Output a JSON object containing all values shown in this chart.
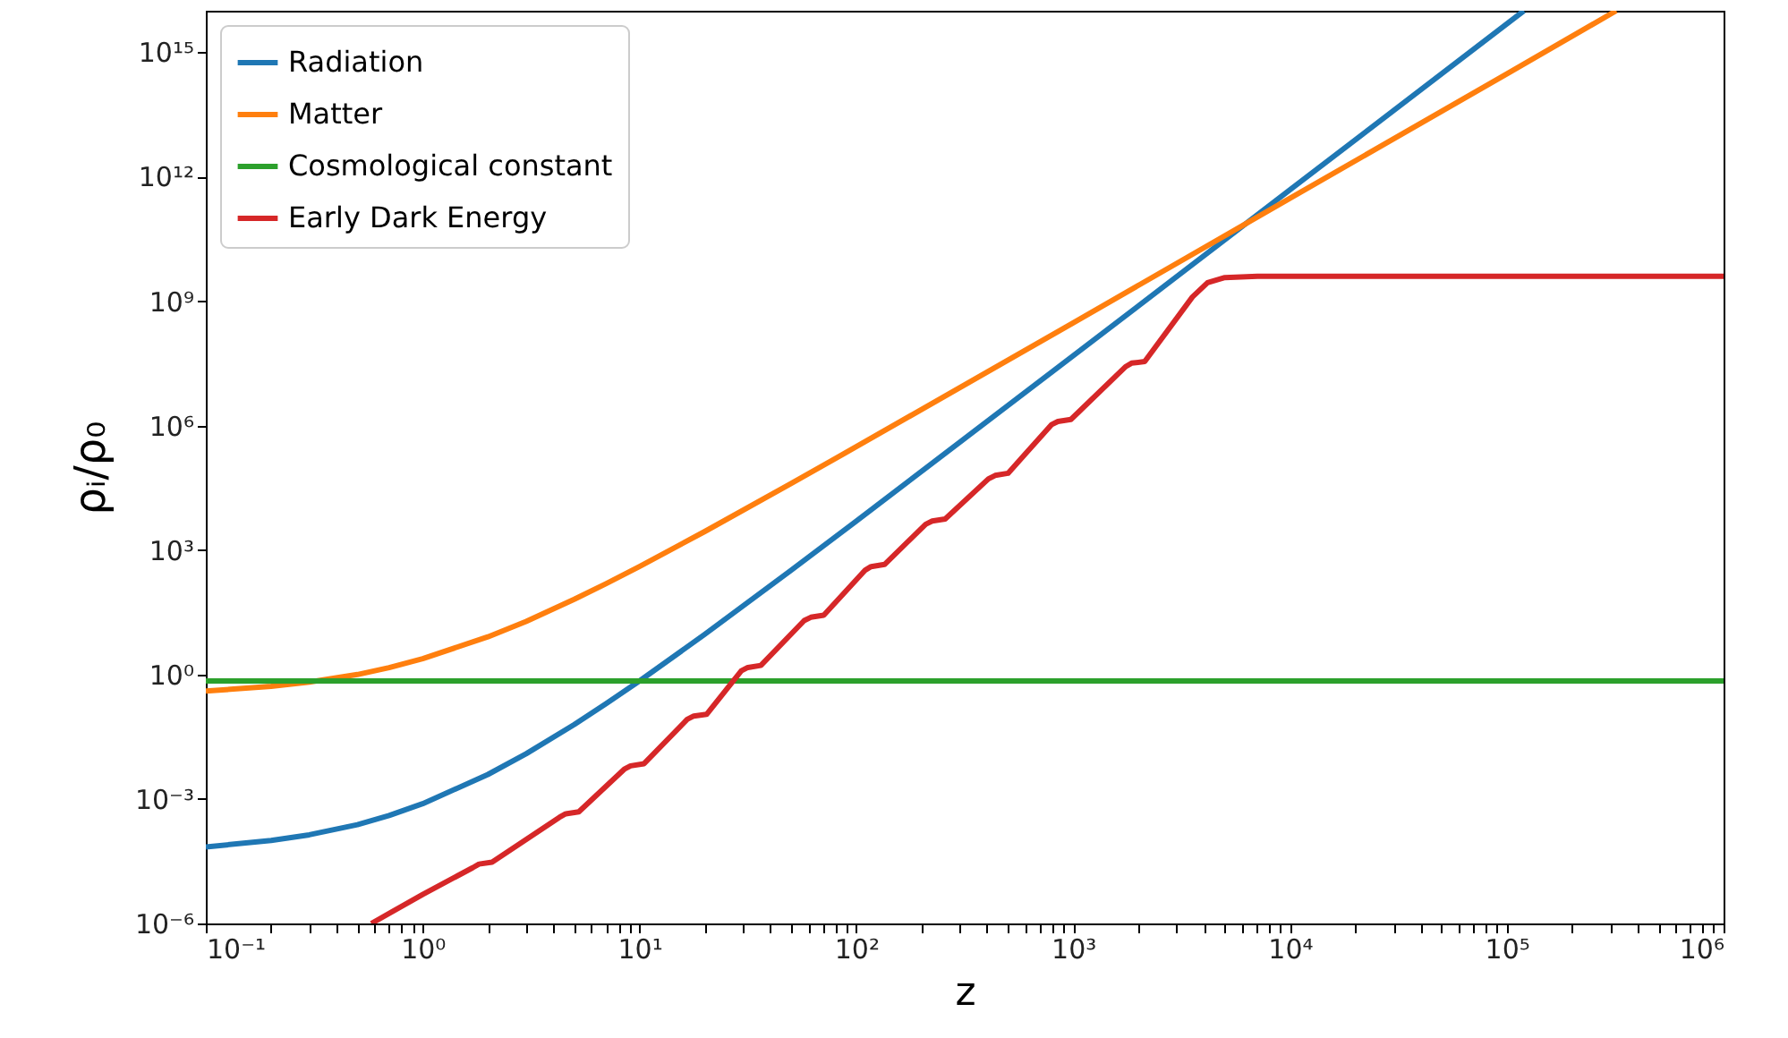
{
  "chart_data": {
    "type": "line",
    "xlabel": "z",
    "ylabel": "ρᵢ/ρ₀",
    "log": "xy",
    "grid": false,
    "legend": "top left",
    "line_style": "solid",
    "marker": "none",
    "xlim": [
      0.1,
      1000000
    ],
    "ylim": [
      1e-06,
      1e+16
    ],
    "xticks": [
      {
        "value": 0.1,
        "label": "10⁻¹"
      },
      {
        "value": 0.2,
        "label": null
      },
      {
        "value": 0.3,
        "label": null
      },
      {
        "value": 0.4,
        "label": null
      },
      {
        "value": 0.5,
        "label": null
      },
      {
        "value": 0.6,
        "label": null
      },
      {
        "value": 0.7,
        "label": null
      },
      {
        "value": 0.8,
        "label": null
      },
      {
        "value": 0.9,
        "label": null
      },
      {
        "value": 1,
        "label": "10⁰"
      },
      {
        "value": 2,
        "label": null
      },
      {
        "value": 3,
        "label": null
      },
      {
        "value": 4,
        "label": null
      },
      {
        "value": 5,
        "label": null
      },
      {
        "value": 6,
        "label": null
      },
      {
        "value": 7,
        "label": null
      },
      {
        "value": 8,
        "label": null
      },
      {
        "value": 9,
        "label": null
      },
      {
        "value": 10,
        "label": "10¹"
      },
      {
        "value": 20,
        "label": null
      },
      {
        "value": 30,
        "label": null
      },
      {
        "value": 40,
        "label": null
      },
      {
        "value": 50,
        "label": null
      },
      {
        "value": 60,
        "label": null
      },
      {
        "value": 70,
        "label": null
      },
      {
        "value": 80,
        "label": null
      },
      {
        "value": 90,
        "label": null
      },
      {
        "value": 100,
        "label": "10²"
      },
      {
        "value": 200,
        "label": null
      },
      {
        "value": 300,
        "label": null
      },
      {
        "value": 400,
        "label": null
      },
      {
        "value": 500,
        "label": null
      },
      {
        "value": 600,
        "label": null
      },
      {
        "value": 700,
        "label": null
      },
      {
        "value": 800,
        "label": null
      },
      {
        "value": 900,
        "label": null
      },
      {
        "value": 1000,
        "label": "10³"
      },
      {
        "value": 2000,
        "label": null
      },
      {
        "value": 3000,
        "label": null
      },
      {
        "value": 4000,
        "label": null
      },
      {
        "value": 5000,
        "label": null
      },
      {
        "value": 6000,
        "label": null
      },
      {
        "value": 7000,
        "label": null
      },
      {
        "value": 8000,
        "label": null
      },
      {
        "value": 9000,
        "label": null
      },
      {
        "value": 10000,
        "label": "10⁴"
      },
      {
        "value": 20000,
        "label": null
      },
      {
        "value": 30000,
        "label": null
      },
      {
        "value": 40000,
        "label": null
      },
      {
        "value": 50000,
        "label": null
      },
      {
        "value": 60000,
        "label": null
      },
      {
        "value": 70000,
        "label": null
      },
      {
        "value": 80000,
        "label": null
      },
      {
        "value": 90000,
        "label": null
      },
      {
        "value": 100000,
        "label": "10⁵"
      },
      {
        "value": 200000,
        "label": null
      },
      {
        "value": 300000,
        "label": null
      },
      {
        "value": 400000,
        "label": null
      },
      {
        "value": 500000,
        "label": null
      },
      {
        "value": 600000,
        "label": null
      },
      {
        "value": 700000,
        "label": null
      },
      {
        "value": 800000,
        "label": null
      },
      {
        "value": 900000,
        "label": null
      },
      {
        "value": 1000000,
        "label": "10⁶"
      }
    ],
    "yticks": [
      {
        "value": 1e-06,
        "label": "10⁻⁶"
      },
      {
        "value": 0.001,
        "label": "10⁻³"
      },
      {
        "value": 1,
        "label": "10⁰"
      },
      {
        "value": 1000,
        "label": "10³"
      },
      {
        "value": 1000000,
        "label": "10⁶"
      },
      {
        "value": 1000000000,
        "label": "10⁹"
      },
      {
        "value": 1000000000000,
        "label": "10¹²"
      },
      {
        "value": 1000000000000000,
        "label": "10¹⁵"
      }
    ],
    "series": [
      {
        "name": "Radiation",
        "color": "#1f77b4",
        "x": [
          0.1,
          0.2,
          0.3,
          0.5,
          0.7,
          1,
          2,
          3,
          5,
          7,
          10,
          20,
          50,
          100,
          1000,
          10000,
          120000
        ],
        "values": [
          7e-05,
          0.0001,
          0.000137,
          0.00024,
          0.0004,
          0.00077,
          0.0039,
          0.0123,
          0.062,
          0.197,
          0.7,
          9.3,
          325,
          5000,
          48000000.0,
          480000000000.0,
          1e+16
        ]
      },
      {
        "name": "Matter",
        "color": "#ff7f0e",
        "x": [
          0.1,
          0.2,
          0.3,
          0.5,
          0.7,
          1,
          2,
          3,
          5,
          7,
          10,
          20,
          50,
          100,
          1000,
          10000,
          100000,
          320000
        ],
        "values": [
          0.4,
          0.52,
          0.66,
          1.0,
          1.47,
          2.4,
          8.1,
          19,
          65,
          154,
          400,
          2800,
          40000.0,
          310000.0,
          300000000.0,
          300000000000.0,
          300000000000000.0,
          1e+16
        ]
      },
      {
        "name": "Cosmological constant",
        "color": "#2ca02c",
        "x": [
          0.1,
          1000000
        ],
        "values": [
          0.7,
          0.7
        ]
      },
      {
        "name": "Early Dark Energy",
        "color": "#d62728",
        "x": [
          0.58,
          1.0,
          1.7,
          1.82,
          2.09,
          4.27,
          4.57,
          5.25,
          8.5,
          9.1,
          10.5,
          16.6,
          17.8,
          20.4,
          29.5,
          31.6,
          36.3,
          57.5,
          61.7,
          70.8,
          110,
          117,
          135,
          209,
          224,
          257,
          407,
          437,
          501,
          794,
          851,
          977,
          1740,
          1860,
          2140,
          3550,
          4170,
          5010,
          7080,
          1000000
        ],
        "values": [
          1e-06,
          5e-06,
          2.2e-05,
          2.7e-05,
          3e-05,
          0.00036,
          0.00044,
          0.00049,
          0.0052,
          0.0063,
          0.0071,
          0.083,
          0.1,
          0.11,
          1.23,
          1.48,
          1.66,
          20,
          24,
          27,
          330,
          400,
          450,
          4200,
          5000,
          5600,
          52000.0,
          63000.0,
          71000.0,
          1050000.0,
          1260000.0,
          1410000.0,
          26000000.0,
          32000000.0,
          35000000.0,
          1260000000.0,
          2800000000.0,
          3700000000.0,
          4000000000.0,
          4000000000.0
        ]
      }
    ]
  }
}
